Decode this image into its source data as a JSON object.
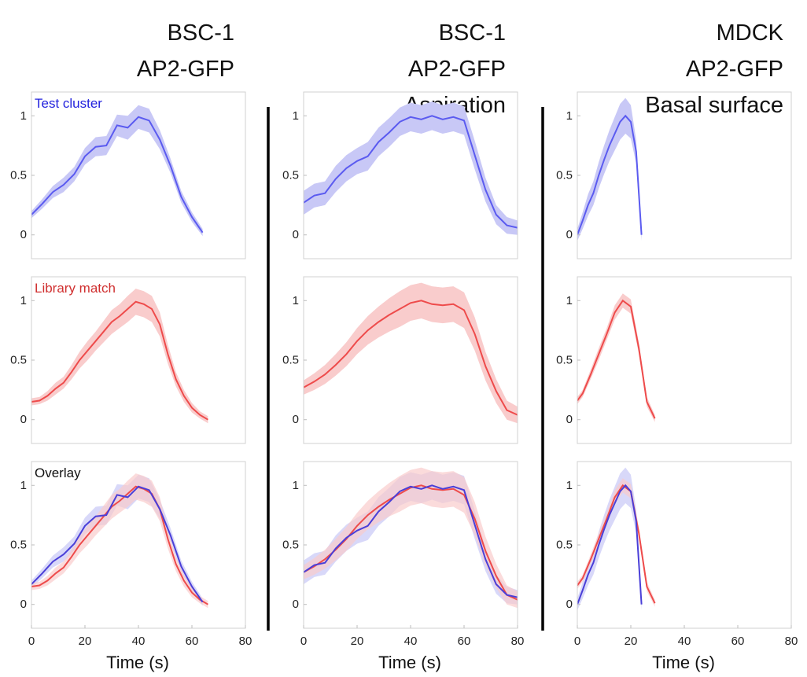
{
  "chart_data": {
    "type": "line",
    "columns": [
      {
        "title_lines": [
          "BSC-1",
          "AP2-GFP"
        ]
      },
      {
        "title_lines": [
          "BSC-1",
          "AP2-GFP",
          "Aspiration"
        ]
      },
      {
        "title_lines": [
          "MDCK",
          "AP2-GFP",
          "Basal surface"
        ]
      }
    ],
    "row_annotations": [
      "Test cluster",
      "Library match",
      "Overlay"
    ],
    "xlabel": "Time (s)",
    "xlim": [
      0,
      80
    ],
    "ylim": [
      -0.2,
      1.2
    ],
    "x_ticks": [
      "0",
      "20",
      "40",
      "60",
      "80"
    ],
    "y_ticks": [
      "0",
      "0.5",
      "1"
    ],
    "grid": false,
    "colors": {
      "test": "#5b5bf0",
      "test_band": "#c8c8f6",
      "library": "#ee4b4b",
      "library_band": "#f9cccc",
      "overlay_test": "#4a3fd8",
      "annotation_test": "#2222dd",
      "annotation_library": "#d03030",
      "annotation_overlay": "#111111",
      "divider": "#000000"
    },
    "panels": [
      {
        "test": {
          "x": [
            0,
            4,
            8,
            12,
            16,
            20,
            24,
            28,
            32,
            36,
            40,
            44,
            48,
            52,
            56,
            60,
            64
          ],
          "y": [
            0.17,
            0.26,
            0.36,
            0.42,
            0.51,
            0.66,
            0.74,
            0.75,
            0.92,
            0.9,
            0.99,
            0.96,
            0.8,
            0.58,
            0.32,
            0.15,
            0.02
          ],
          "err": [
            0.03,
            0.04,
            0.05,
            0.06,
            0.06,
            0.07,
            0.08,
            0.08,
            0.09,
            0.1,
            0.1,
            0.1,
            0.08,
            0.06,
            0.05,
            0.04,
            0.03
          ]
        },
        "library": {
          "x": [
            0,
            3,
            6,
            9,
            12,
            15,
            18,
            21,
            24,
            27,
            30,
            33,
            36,
            39,
            42,
            45,
            48,
            51,
            54,
            57,
            60,
            63,
            66
          ],
          "y": [
            0.15,
            0.16,
            0.2,
            0.26,
            0.31,
            0.4,
            0.5,
            0.58,
            0.66,
            0.74,
            0.82,
            0.87,
            0.93,
            0.99,
            0.97,
            0.93,
            0.8,
            0.55,
            0.34,
            0.2,
            0.1,
            0.04,
            0.0
          ],
          "err": [
            0.03,
            0.03,
            0.04,
            0.05,
            0.05,
            0.06,
            0.07,
            0.08,
            0.08,
            0.09,
            0.1,
            0.1,
            0.11,
            0.11,
            0.11,
            0.11,
            0.1,
            0.08,
            0.06,
            0.05,
            0.04,
            0.03,
            0.03
          ]
        }
      },
      {
        "test": {
          "x": [
            0,
            4,
            8,
            12,
            16,
            20,
            24,
            28,
            32,
            36,
            40,
            44,
            48,
            52,
            56,
            60,
            64,
            68,
            72,
            76,
            80
          ],
          "y": [
            0.27,
            0.33,
            0.35,
            0.47,
            0.56,
            0.62,
            0.66,
            0.78,
            0.86,
            0.95,
            0.99,
            0.97,
            1.0,
            0.97,
            0.99,
            0.96,
            0.67,
            0.38,
            0.17,
            0.08,
            0.06
          ],
          "err": [
            0.1,
            0.1,
            0.1,
            0.11,
            0.11,
            0.11,
            0.12,
            0.12,
            0.12,
            0.12,
            0.12,
            0.12,
            0.12,
            0.12,
            0.12,
            0.12,
            0.12,
            0.1,
            0.08,
            0.07,
            0.06
          ]
        },
        "library": {
          "x": [
            0,
            4,
            8,
            12,
            16,
            20,
            24,
            28,
            32,
            36,
            40,
            44,
            48,
            52,
            56,
            60,
            64,
            68,
            72,
            76,
            80
          ],
          "y": [
            0.27,
            0.32,
            0.38,
            0.46,
            0.55,
            0.66,
            0.75,
            0.82,
            0.88,
            0.93,
            0.98,
            1.0,
            0.97,
            0.96,
            0.97,
            0.92,
            0.72,
            0.45,
            0.24,
            0.08,
            0.04
          ],
          "err": [
            0.06,
            0.07,
            0.08,
            0.09,
            0.1,
            0.11,
            0.12,
            0.13,
            0.14,
            0.15,
            0.15,
            0.15,
            0.15,
            0.15,
            0.15,
            0.15,
            0.14,
            0.12,
            0.1,
            0.08,
            0.07
          ]
        }
      },
      {
        "test": {
          "x": [
            0,
            2,
            4,
            6,
            8,
            10,
            12,
            14,
            16,
            18,
            20,
            22,
            24
          ],
          "y": [
            0.0,
            0.12,
            0.25,
            0.35,
            0.5,
            0.63,
            0.75,
            0.85,
            0.95,
            1.0,
            0.95,
            0.7,
            0.0
          ],
          "err": [
            0.05,
            0.07,
            0.09,
            0.1,
            0.11,
            0.12,
            0.13,
            0.14,
            0.15,
            0.15,
            0.14,
            0.1,
            0.05
          ]
        },
        "library": {
          "x": [
            0,
            2,
            5,
            8,
            11,
            14,
            17,
            20,
            23,
            26,
            29
          ],
          "y": [
            0.16,
            0.22,
            0.38,
            0.55,
            0.72,
            0.9,
            1.0,
            0.95,
            0.6,
            0.15,
            0.01
          ],
          "err": [
            0.03,
            0.03,
            0.04,
            0.05,
            0.05,
            0.06,
            0.06,
            0.06,
            0.05,
            0.04,
            0.03
          ]
        }
      }
    ]
  }
}
